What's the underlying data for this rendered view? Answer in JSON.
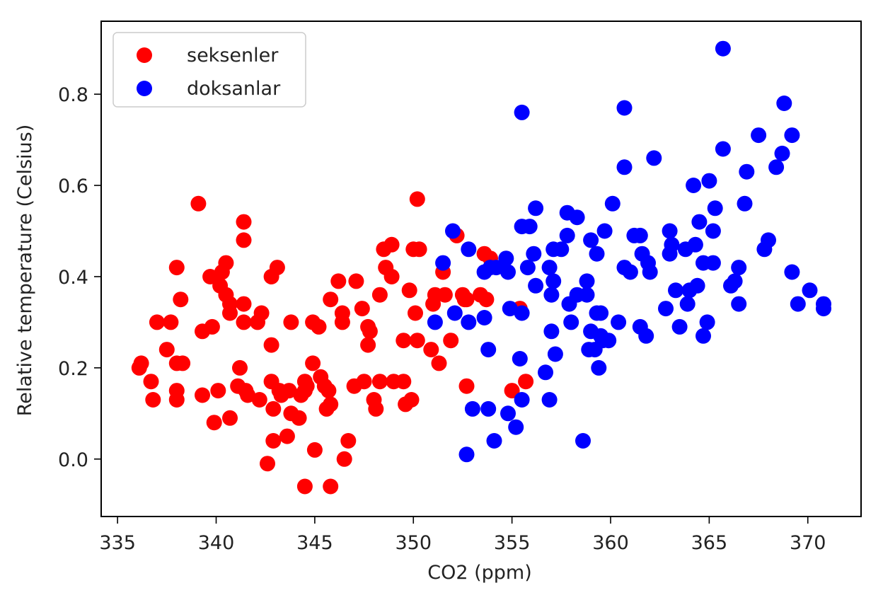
{
  "chart_data": {
    "type": "scatter",
    "title": "",
    "xlabel": "CO2 (ppm)",
    "ylabel": "Relative temperature (Celsius)",
    "xlim": [
      334.17,
      372.7
    ],
    "ylim": [
      -0.126,
      0.96
    ],
    "xticks": [
      335,
      340,
      345,
      350,
      355,
      360,
      365,
      370
    ],
    "xtick_labels": [
      "335",
      "340",
      "345",
      "350",
      "355",
      "360",
      "365",
      "370"
    ],
    "yticks": [
      0.0,
      0.2,
      0.4,
      0.6,
      0.8
    ],
    "ytick_labels": [
      "0.0",
      "0.2",
      "0.4",
      "0.6",
      "0.8"
    ],
    "grid": false,
    "legend_position": "top-left",
    "series": [
      {
        "name": "seksenler",
        "color": "#ff0000",
        "points": [
          [
            336.1,
            0.2
          ],
          [
            336.2,
            0.21
          ],
          [
            336.7,
            0.17
          ],
          [
            336.8,
            0.13
          ],
          [
            337.0,
            0.3
          ],
          [
            337.5,
            0.24
          ],
          [
            337.7,
            0.3
          ],
          [
            338.0,
            0.42
          ],
          [
            338.0,
            0.21
          ],
          [
            338.2,
            0.35
          ],
          [
            338.3,
            0.21
          ],
          [
            338.0,
            0.15
          ],
          [
            338.0,
            0.13
          ],
          [
            339.1,
            0.56
          ],
          [
            339.3,
            0.28
          ],
          [
            339.3,
            0.14
          ],
          [
            339.7,
            0.4
          ],
          [
            339.8,
            0.29
          ],
          [
            339.9,
            0.08
          ],
          [
            340.1,
            0.15
          ],
          [
            340.2,
            0.38
          ],
          [
            340.3,
            0.41
          ],
          [
            340.5,
            0.43
          ],
          [
            340.5,
            0.36
          ],
          [
            340.7,
            0.32
          ],
          [
            340.7,
            0.09
          ],
          [
            340.7,
            0.34
          ],
          [
            341.1,
            0.16
          ],
          [
            341.2,
            0.2
          ],
          [
            341.4,
            0.34
          ],
          [
            341.4,
            0.52
          ],
          [
            341.4,
            0.48
          ],
          [
            341.4,
            0.3
          ],
          [
            341.5,
            0.15
          ],
          [
            341.6,
            0.14
          ],
          [
            342.1,
            0.3
          ],
          [
            342.2,
            0.13
          ],
          [
            342.3,
            0.32
          ],
          [
            342.6,
            -0.01
          ],
          [
            342.8,
            0.4
          ],
          [
            342.8,
            0.25
          ],
          [
            342.8,
            0.17
          ],
          [
            342.9,
            0.04
          ],
          [
            342.9,
            0.11
          ],
          [
            343.1,
            0.42
          ],
          [
            343.2,
            0.15
          ],
          [
            343.3,
            0.14
          ],
          [
            343.6,
            0.05
          ],
          [
            343.7,
            0.15
          ],
          [
            343.8,
            0.1
          ],
          [
            343.8,
            0.3
          ],
          [
            344.2,
            0.09
          ],
          [
            344.3,
            0.14
          ],
          [
            344.5,
            -0.06
          ],
          [
            344.5,
            0.17
          ],
          [
            344.5,
            0.15
          ],
          [
            344.6,
            0.16
          ],
          [
            344.9,
            0.3
          ],
          [
            344.9,
            0.21
          ],
          [
            345.0,
            0.02
          ],
          [
            345.2,
            0.29
          ],
          [
            345.3,
            0.18
          ],
          [
            345.5,
            0.16
          ],
          [
            345.6,
            0.11
          ],
          [
            345.7,
            0.15
          ],
          [
            345.8,
            0.35
          ],
          [
            345.8,
            -0.06
          ],
          [
            345.8,
            0.12
          ],
          [
            346.2,
            0.39
          ],
          [
            346.4,
            0.32
          ],
          [
            346.4,
            0.3
          ],
          [
            346.5,
            0.0
          ],
          [
            346.7,
            0.04
          ],
          [
            347.0,
            0.16
          ],
          [
            347.1,
            0.39
          ],
          [
            347.4,
            0.33
          ],
          [
            347.5,
            0.17
          ],
          [
            347.7,
            0.29
          ],
          [
            347.7,
            0.25
          ],
          [
            347.8,
            0.28
          ],
          [
            348.0,
            0.13
          ],
          [
            348.1,
            0.11
          ],
          [
            348.3,
            0.17
          ],
          [
            348.3,
            0.36
          ],
          [
            348.5,
            0.46
          ],
          [
            348.6,
            0.42
          ],
          [
            348.9,
            0.4
          ],
          [
            348.9,
            0.47
          ],
          [
            349.0,
            0.17
          ],
          [
            349.5,
            0.17
          ],
          [
            349.5,
            0.26
          ],
          [
            349.6,
            0.12
          ],
          [
            349.8,
            0.37
          ],
          [
            349.9,
            0.13
          ],
          [
            350.0,
            0.46
          ],
          [
            350.1,
            0.32
          ],
          [
            350.2,
            0.57
          ],
          [
            350.2,
            0.26
          ],
          [
            350.3,
            0.46
          ],
          [
            350.9,
            0.24
          ],
          [
            351.0,
            0.34
          ],
          [
            351.1,
            0.36
          ],
          [
            351.3,
            0.21
          ],
          [
            351.5,
            0.41
          ],
          [
            351.6,
            0.36
          ],
          [
            351.9,
            0.26
          ],
          [
            352.2,
            0.49
          ],
          [
            352.5,
            0.36
          ],
          [
            352.6,
            0.35
          ],
          [
            352.7,
            0.16
          ],
          [
            352.7,
            0.35
          ],
          [
            353.4,
            0.36
          ],
          [
            353.6,
            0.45
          ],
          [
            353.7,
            0.35
          ],
          [
            353.9,
            0.44
          ],
          [
            355.0,
            0.15
          ],
          [
            355.4,
            0.33
          ],
          [
            355.7,
            0.17
          ]
        ]
      },
      {
        "name": "doksanlar",
        "color": "#0000ff",
        "points": [
          [
            351.1,
            0.3
          ],
          [
            351.5,
            0.43
          ],
          [
            352.0,
            0.5
          ],
          [
            352.1,
            0.32
          ],
          [
            352.7,
            0.01
          ],
          [
            352.8,
            0.46
          ],
          [
            352.8,
            0.3
          ],
          [
            353.0,
            0.11
          ],
          [
            353.6,
            0.41
          ],
          [
            353.6,
            0.31
          ],
          [
            353.8,
            0.11
          ],
          [
            353.8,
            0.24
          ],
          [
            353.9,
            0.42
          ],
          [
            354.1,
            0.04
          ],
          [
            354.2,
            0.42
          ],
          [
            354.7,
            0.44
          ],
          [
            354.8,
            0.41
          ],
          [
            354.8,
            0.1
          ],
          [
            354.9,
            0.33
          ],
          [
            355.2,
            0.07
          ],
          [
            355.4,
            0.22
          ],
          [
            355.5,
            0.13
          ],
          [
            355.5,
            0.76
          ],
          [
            355.5,
            0.32
          ],
          [
            355.5,
            0.51
          ],
          [
            355.8,
            0.42
          ],
          [
            355.9,
            0.51
          ],
          [
            356.1,
            0.45
          ],
          [
            356.2,
            0.55
          ],
          [
            356.2,
            0.38
          ],
          [
            356.7,
            0.19
          ],
          [
            356.9,
            0.42
          ],
          [
            356.9,
            0.13
          ],
          [
            357.0,
            0.36
          ],
          [
            357.0,
            0.28
          ],
          [
            357.1,
            0.39
          ],
          [
            357.2,
            0.23
          ],
          [
            357.1,
            0.46
          ],
          [
            357.5,
            0.46
          ],
          [
            357.8,
            0.49
          ],
          [
            357.8,
            0.54
          ],
          [
            357.9,
            0.34
          ],
          [
            358.0,
            0.3
          ],
          [
            358.3,
            0.36
          ],
          [
            358.3,
            0.53
          ],
          [
            358.6,
            0.04
          ],
          [
            358.8,
            0.36
          ],
          [
            358.8,
            0.39
          ],
          [
            358.9,
            0.24
          ],
          [
            359.0,
            0.48
          ],
          [
            359.0,
            0.28
          ],
          [
            359.2,
            0.24
          ],
          [
            359.3,
            0.45
          ],
          [
            359.3,
            0.32
          ],
          [
            359.4,
            0.2
          ],
          [
            359.5,
            0.27
          ],
          [
            359.5,
            0.32
          ],
          [
            359.6,
            0.26
          ],
          [
            359.7,
            0.5
          ],
          [
            359.9,
            0.26
          ],
          [
            360.1,
            0.56
          ],
          [
            360.4,
            0.3
          ],
          [
            360.7,
            0.77
          ],
          [
            360.7,
            0.64
          ],
          [
            360.7,
            0.42
          ],
          [
            361.0,
            0.41
          ],
          [
            361.2,
            0.49
          ],
          [
            361.5,
            0.29
          ],
          [
            361.5,
            0.49
          ],
          [
            361.6,
            0.45
          ],
          [
            361.8,
            0.27
          ],
          [
            361.9,
            0.43
          ],
          [
            362.0,
            0.41
          ],
          [
            362.2,
            0.66
          ],
          [
            362.8,
            0.33
          ],
          [
            363.0,
            0.45
          ],
          [
            363.0,
            0.5
          ],
          [
            363.1,
            0.47
          ],
          [
            363.3,
            0.37
          ],
          [
            363.5,
            0.29
          ],
          [
            363.8,
            0.46
          ],
          [
            363.9,
            0.34
          ],
          [
            364.0,
            0.37
          ],
          [
            364.2,
            0.6
          ],
          [
            364.3,
            0.47
          ],
          [
            364.4,
            0.38
          ],
          [
            364.5,
            0.52
          ],
          [
            364.7,
            0.27
          ],
          [
            364.7,
            0.43
          ],
          [
            364.9,
            0.3
          ],
          [
            365.0,
            0.61
          ],
          [
            365.2,
            0.5
          ],
          [
            365.3,
            0.55
          ],
          [
            365.2,
            0.43
          ],
          [
            365.7,
            0.9
          ],
          [
            365.7,
            0.68
          ],
          [
            366.1,
            0.38
          ],
          [
            366.3,
            0.39
          ],
          [
            366.5,
            0.42
          ],
          [
            366.5,
            0.34
          ],
          [
            366.8,
            0.56
          ],
          [
            366.9,
            0.63
          ],
          [
            367.5,
            0.71
          ],
          [
            367.8,
            0.46
          ],
          [
            368.0,
            0.48
          ],
          [
            368.4,
            0.64
          ],
          [
            368.7,
            0.67
          ],
          [
            368.8,
            0.78
          ],
          [
            369.2,
            0.71
          ],
          [
            369.2,
            0.41
          ],
          [
            369.5,
            0.34
          ],
          [
            370.1,
            0.37
          ],
          [
            370.8,
            0.34
          ],
          [
            370.8,
            0.33
          ]
        ]
      }
    ]
  }
}
